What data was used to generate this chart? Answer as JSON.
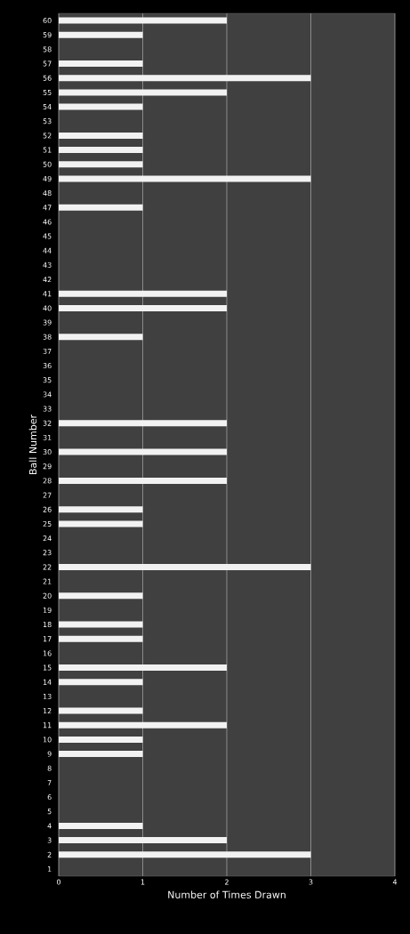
{
  "chart_data": {
    "type": "bar",
    "orientation": "horizontal",
    "xlabel": "Number of Times Drawn",
    "ylabel": "Ball Number",
    "categories": [
      "60",
      "59",
      "58",
      "57",
      "56",
      "55",
      "54",
      "53",
      "52",
      "51",
      "50",
      "49",
      "48",
      "47",
      "46",
      "45",
      "44",
      "43",
      "42",
      "41",
      "40",
      "39",
      "38",
      "37",
      "36",
      "35",
      "34",
      "33",
      "32",
      "31",
      "30",
      "29",
      "28",
      "27",
      "26",
      "25",
      "24",
      "23",
      "22",
      "21",
      "20",
      "19",
      "18",
      "17",
      "16",
      "15",
      "14",
      "13",
      "12",
      "11",
      "10",
      "9",
      "8",
      "7",
      "6",
      "5",
      "4",
      "3",
      "2",
      "1"
    ],
    "values": [
      2,
      1,
      0,
      1,
      3,
      2,
      1,
      0,
      1,
      1,
      1,
      3,
      0,
      1,
      0,
      0,
      0,
      0,
      0,
      2,
      2,
      0,
      1,
      0,
      0,
      0,
      0,
      0,
      2,
      0,
      2,
      0,
      2,
      0,
      1,
      1,
      0,
      0,
      3,
      0,
      1,
      0,
      1,
      1,
      0,
      2,
      1,
      0,
      1,
      2,
      1,
      1,
      0,
      0,
      0,
      0,
      1,
      2,
      3,
      0
    ],
    "color": "#f2f2f2",
    "xlim": [
      0,
      4
    ],
    "xticks": [
      0,
      1,
      2,
      3,
      4
    ],
    "grid": "x"
  }
}
